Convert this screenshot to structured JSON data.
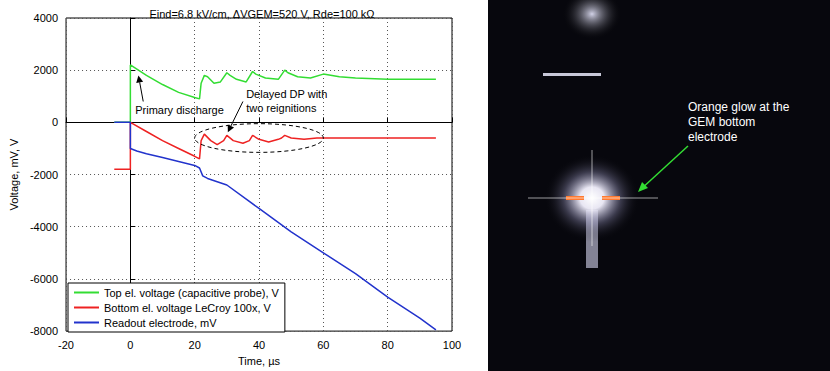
{
  "chart_data": {
    "type": "line",
    "title": "Eind=6.8 kV/cm, ΔVGEM=520 V, Rde=100 kΩ",
    "xlabel": "Time, µs",
    "ylabel": "Voltage, mV, V",
    "xlim": [
      -20,
      100
    ],
    "xticks": [
      -20,
      0,
      20,
      40,
      60,
      80,
      100
    ],
    "ylim": [
      -8000,
      4000
    ],
    "yticks": [
      -8000,
      -6000,
      -4000,
      -2000,
      0,
      2000,
      4000
    ],
    "grid": true,
    "legend": "lower left",
    "annotations": [
      "Primary discharge",
      "Delayed DP with two reignitions"
    ],
    "series": [
      {
        "name": "Top el. voltage (capacitive probe), V",
        "color": "#33dd33",
        "x": [
          -5,
          0,
          0,
          5,
          10,
          15,
          20,
          21.5,
          22,
          23,
          24,
          26,
          28,
          30,
          31,
          33,
          36,
          38,
          39,
          42,
          46,
          48,
          49,
          52,
          56,
          60,
          65,
          70,
          80,
          90,
          95
        ],
        "values": [
          0,
          0,
          2200,
          1800,
          1450,
          1150,
          950,
          900,
          1500,
          1800,
          1750,
          1500,
          1550,
          1900,
          1800,
          1650,
          1550,
          1950,
          1850,
          1700,
          1650,
          2000,
          1900,
          1750,
          1700,
          1850,
          1750,
          1700,
          1650,
          1650,
          1650
        ]
      },
      {
        "name": "Bottom el. voltage LeCroy 100x, V",
        "color": "#ee2222",
        "x": [
          -5,
          0,
          0,
          5,
          10,
          15,
          20,
          21.5,
          22,
          23,
          25,
          27,
          29,
          30,
          32,
          35,
          37,
          38,
          40,
          43,
          46,
          47,
          48,
          50,
          54,
          58,
          62,
          70,
          80,
          95
        ],
        "values": [
          -1800,
          -1800,
          0,
          -350,
          -700,
          -1000,
          -1300,
          -1400,
          -700,
          -450,
          -700,
          -850,
          -700,
          -500,
          -700,
          -800,
          -700,
          -500,
          -650,
          -750,
          -650,
          -600,
          -500,
          -600,
          -650,
          -600,
          -600,
          -600,
          -600,
          -600
        ]
      },
      {
        "name": "Readout electrode, mV",
        "color": "#2233cc",
        "x": [
          -5,
          0,
          0,
          2,
          5,
          10,
          15,
          20,
          21.5,
          22.5,
          24,
          30,
          40,
          50,
          60,
          70,
          80,
          90,
          95
        ],
        "values": [
          0,
          0,
          -1000,
          -1100,
          -1200,
          -1350,
          -1500,
          -1650,
          -1750,
          -2050,
          -2150,
          -2400,
          -3300,
          -4200,
          -5000,
          -5800,
          -6700,
          -7500,
          -7950
        ]
      }
    ]
  },
  "photo": {
    "annotation": "Orange glow at the GEM bottom electrode"
  }
}
